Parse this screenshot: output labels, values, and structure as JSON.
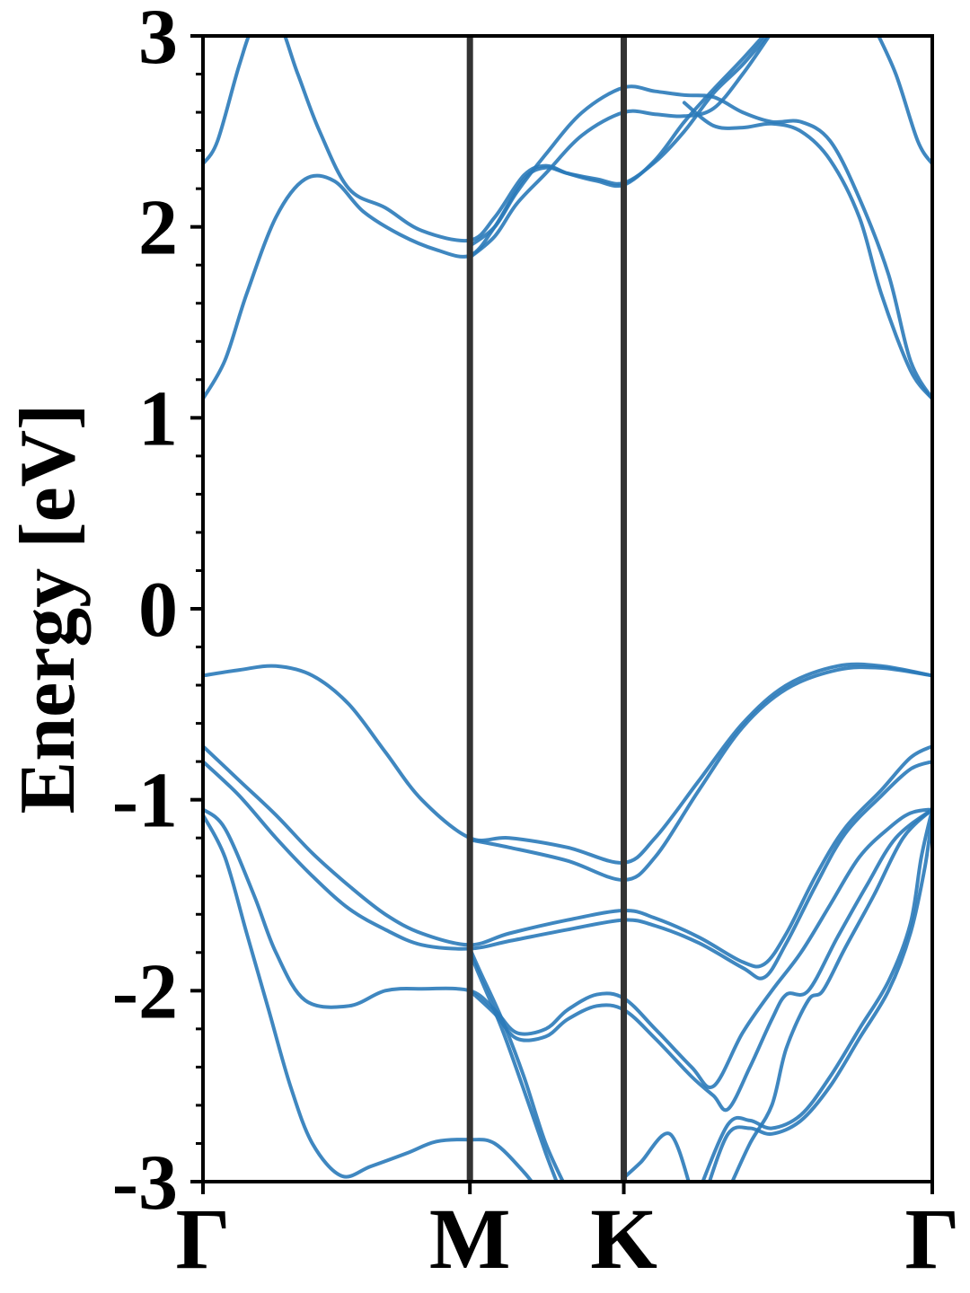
{
  "chart_data": {
    "type": "line",
    "ylabel": "Energy [eV]",
    "xlabel": "",
    "ylim": [
      -3,
      3
    ],
    "xlim": [
      0,
      1
    ],
    "y_major_ticks": [
      3,
      2,
      1,
      0,
      -1,
      -2,
      -3
    ],
    "y_tick_labels": [
      "3",
      "2",
      "1",
      "0",
      "-1",
      "-2",
      "-3"
    ],
    "y_minor_step": 0.2,
    "high_symmetry_points": [
      {
        "label": "Γ",
        "x": 0.0
      },
      {
        "label": "M",
        "x": 0.366
      },
      {
        "label": "K",
        "x": 0.577
      },
      {
        "label": "Γ",
        "x": 1.0
      }
    ],
    "vertical_lines_at": [
      0.366,
      0.577
    ],
    "grid": false,
    "line_color": "#2a7ab9",
    "vline_color": "#333333",
    "series": [
      {
        "values": [
          [
            0.0,
            2.33
          ],
          [
            0.02,
            2.45
          ],
          [
            0.05,
            2.85
          ],
          [
            0.07,
            3.05
          ],
          [
            0.1,
            3.1
          ],
          [
            0.13,
            2.8
          ],
          [
            0.16,
            2.5
          ],
          [
            0.2,
            2.2
          ],
          [
            0.25,
            2.1
          ],
          [
            0.3,
            1.98
          ],
          [
            0.366,
            1.93
          ],
          [
            0.4,
            2.05
          ],
          [
            0.44,
            2.27
          ],
          [
            0.47,
            2.32
          ],
          [
            0.5,
            2.28
          ],
          [
            0.54,
            2.24
          ],
          [
            0.577,
            2.22
          ],
          [
            0.62,
            2.35
          ],
          [
            0.66,
            2.55
          ],
          [
            0.7,
            2.72
          ],
          [
            0.74,
            2.88
          ],
          [
            0.78,
            3.05
          ]
        ]
      },
      {
        "values": [
          [
            0.0,
            1.1
          ],
          [
            0.03,
            1.3
          ],
          [
            0.06,
            1.65
          ],
          [
            0.1,
            2.05
          ],
          [
            0.14,
            2.25
          ],
          [
            0.18,
            2.24
          ],
          [
            0.22,
            2.08
          ],
          [
            0.27,
            1.96
          ],
          [
            0.32,
            1.88
          ],
          [
            0.366,
            1.85
          ],
          [
            0.4,
            2.0
          ],
          [
            0.44,
            2.25
          ],
          [
            0.47,
            2.31
          ],
          [
            0.5,
            2.28
          ],
          [
            0.54,
            2.25
          ],
          [
            0.577,
            2.23
          ],
          [
            0.62,
            2.34
          ],
          [
            0.66,
            2.5
          ],
          [
            0.7,
            2.7
          ],
          [
            0.74,
            2.85
          ],
          [
            0.78,
            3.03
          ]
        ]
      },
      {
        "values": [
          [
            0.366,
            1.84
          ],
          [
            0.4,
            1.95
          ],
          [
            0.43,
            2.12
          ],
          [
            0.47,
            2.28
          ],
          [
            0.52,
            2.48
          ],
          [
            0.577,
            2.6
          ],
          [
            0.62,
            2.59
          ],
          [
            0.66,
            2.58
          ],
          [
            0.7,
            2.62
          ],
          [
            0.74,
            2.8
          ],
          [
            0.78,
            3.02
          ]
        ]
      },
      {
        "values": [
          [
            0.366,
            1.9
          ],
          [
            0.4,
            2.0
          ],
          [
            0.43,
            2.18
          ],
          [
            0.47,
            2.38
          ],
          [
            0.52,
            2.6
          ],
          [
            0.577,
            2.73
          ],
          [
            0.62,
            2.71
          ],
          [
            0.66,
            2.69
          ],
          [
            0.7,
            2.68
          ],
          [
            0.74,
            2.6
          ],
          [
            0.78,
            2.55
          ],
          [
            0.82,
            2.55
          ],
          [
            0.86,
            2.45
          ],
          [
            0.9,
            2.15
          ],
          [
            0.94,
            1.75
          ],
          [
            0.97,
            1.3
          ],
          [
            1.0,
            1.1
          ]
        ]
      },
      {
        "values": [
          [
            0.66,
            2.65
          ],
          [
            0.7,
            2.53
          ],
          [
            0.74,
            2.52
          ],
          [
            0.78,
            2.54
          ],
          [
            0.82,
            2.5
          ],
          [
            0.86,
            2.35
          ],
          [
            0.9,
            2.05
          ],
          [
            0.93,
            1.65
          ],
          [
            0.97,
            1.25
          ],
          [
            1.0,
            1.1
          ]
        ]
      },
      {
        "values": [
          [
            0.92,
            3.05
          ],
          [
            0.95,
            2.8
          ],
          [
            0.98,
            2.45
          ],
          [
            1.0,
            2.33
          ]
        ]
      },
      {
        "values": [
          [
            0.0,
            -0.35
          ],
          [
            0.05,
            -0.32
          ],
          [
            0.1,
            -0.3
          ],
          [
            0.15,
            -0.35
          ],
          [
            0.2,
            -0.5
          ],
          [
            0.25,
            -0.75
          ],
          [
            0.3,
            -1.0
          ],
          [
            0.366,
            -1.2
          ],
          [
            0.42,
            -1.2
          ],
          [
            0.5,
            -1.25
          ],
          [
            0.577,
            -1.33
          ],
          [
            0.62,
            -1.2
          ],
          [
            0.68,
            -0.9
          ],
          [
            0.74,
            -0.6
          ],
          [
            0.8,
            -0.4
          ],
          [
            0.87,
            -0.3
          ],
          [
            0.93,
            -0.3
          ],
          [
            1.0,
            -0.35
          ]
        ]
      },
      {
        "values": [
          [
            0.366,
            -1.21
          ],
          [
            0.42,
            -1.25
          ],
          [
            0.5,
            -1.32
          ],
          [
            0.577,
            -1.42
          ],
          [
            0.62,
            -1.3
          ],
          [
            0.68,
            -0.95
          ],
          [
            0.74,
            -0.62
          ],
          [
            0.8,
            -0.42
          ],
          [
            0.87,
            -0.32
          ],
          [
            0.93,
            -0.31
          ],
          [
            1.0,
            -0.35
          ]
        ]
      },
      {
        "values": [
          [
            0.0,
            -0.72
          ],
          [
            0.05,
            -0.9
          ],
          [
            0.1,
            -1.08
          ],
          [
            0.15,
            -1.28
          ],
          [
            0.2,
            -1.45
          ],
          [
            0.25,
            -1.6
          ],
          [
            0.3,
            -1.7
          ],
          [
            0.366,
            -1.76
          ],
          [
            0.42,
            -1.7
          ],
          [
            0.5,
            -1.63
          ],
          [
            0.577,
            -1.58
          ],
          [
            0.62,
            -1.62
          ],
          [
            0.68,
            -1.72
          ],
          [
            0.74,
            -1.85
          ],
          [
            0.77,
            -1.86
          ],
          [
            0.8,
            -1.7
          ],
          [
            0.84,
            -1.4
          ],
          [
            0.88,
            -1.15
          ],
          [
            0.93,
            -0.95
          ],
          [
            0.97,
            -0.78
          ],
          [
            1.0,
            -0.72
          ]
        ]
      },
      {
        "values": [
          [
            0.0,
            -0.8
          ],
          [
            0.05,
            -0.98
          ],
          [
            0.1,
            -1.2
          ],
          [
            0.15,
            -1.4
          ],
          [
            0.2,
            -1.57
          ],
          [
            0.25,
            -1.68
          ],
          [
            0.3,
            -1.76
          ],
          [
            0.366,
            -1.78
          ],
          [
            0.42,
            -1.74
          ],
          [
            0.5,
            -1.68
          ],
          [
            0.577,
            -1.63
          ],
          [
            0.62,
            -1.66
          ],
          [
            0.68,
            -1.75
          ],
          [
            0.74,
            -1.88
          ],
          [
            0.77,
            -1.93
          ],
          [
            0.8,
            -1.75
          ],
          [
            0.84,
            -1.45
          ],
          [
            0.88,
            -1.18
          ],
          [
            0.93,
            -0.98
          ],
          [
            0.97,
            -0.84
          ],
          [
            1.0,
            -0.8
          ]
        ]
      },
      {
        "values": [
          [
            0.0,
            -1.05
          ],
          [
            0.03,
            -1.15
          ],
          [
            0.07,
            -1.5
          ],
          [
            0.1,
            -1.8
          ],
          [
            0.14,
            -2.05
          ],
          [
            0.2,
            -2.08
          ],
          [
            0.25,
            -2.0
          ],
          [
            0.3,
            -1.99
          ],
          [
            0.366,
            -2.0
          ],
          [
            0.4,
            -2.1
          ],
          [
            0.43,
            -2.22
          ],
          [
            0.47,
            -2.2
          ],
          [
            0.5,
            -2.1
          ],
          [
            0.54,
            -2.02
          ],
          [
            0.577,
            -2.04
          ],
          [
            0.62,
            -2.2
          ],
          [
            0.67,
            -2.4
          ],
          [
            0.7,
            -2.5
          ],
          [
            0.74,
            -2.22
          ],
          [
            0.78,
            -2.0
          ],
          [
            0.82,
            -1.8
          ],
          [
            0.86,
            -1.55
          ],
          [
            0.9,
            -1.3
          ],
          [
            0.94,
            -1.15
          ],
          [
            0.97,
            -1.07
          ],
          [
            1.0,
            -1.05
          ]
        ]
      },
      {
        "values": [
          [
            0.366,
            -2.0
          ],
          [
            0.4,
            -2.12
          ],
          [
            0.43,
            -2.25
          ],
          [
            0.47,
            -2.24
          ],
          [
            0.5,
            -2.15
          ],
          [
            0.54,
            -2.08
          ],
          [
            0.577,
            -2.1
          ],
          [
            0.62,
            -2.25
          ],
          [
            0.67,
            -2.45
          ],
          [
            0.7,
            -2.55
          ],
          [
            0.72,
            -2.62
          ],
          [
            0.75,
            -2.4
          ],
          [
            0.78,
            -2.15
          ],
          [
            0.8,
            -2.02
          ],
          [
            0.83,
            -2.0
          ],
          [
            0.87,
            -1.72
          ],
          [
            0.91,
            -1.45
          ],
          [
            0.95,
            -1.2
          ],
          [
            1.0,
            -1.05
          ]
        ]
      },
      {
        "values": [
          [
            0.0,
            -1.08
          ],
          [
            0.03,
            -1.3
          ],
          [
            0.06,
            -1.7
          ],
          [
            0.09,
            -2.1
          ],
          [
            0.12,
            -2.5
          ],
          [
            0.15,
            -2.8
          ],
          [
            0.19,
            -2.97
          ],
          [
            0.23,
            -2.92
          ],
          [
            0.28,
            -2.85
          ],
          [
            0.32,
            -2.79
          ],
          [
            0.366,
            -2.78
          ],
          [
            0.4,
            -2.8
          ],
          [
            0.44,
            -2.95
          ],
          [
            0.46,
            -3.05
          ]
        ]
      },
      {
        "values": [
          [
            0.366,
            -1.78
          ],
          [
            0.38,
            -1.9
          ],
          [
            0.41,
            -2.15
          ],
          [
            0.44,
            -2.45
          ],
          [
            0.47,
            -2.8
          ],
          [
            0.5,
            -3.05
          ]
        ]
      },
      {
        "values": [
          [
            0.366,
            -1.8
          ],
          [
            0.38,
            -1.93
          ],
          [
            0.41,
            -2.2
          ],
          [
            0.44,
            -2.52
          ],
          [
            0.47,
            -2.85
          ],
          [
            0.49,
            -3.05
          ]
        ]
      },
      {
        "values": [
          [
            0.577,
            -2.98
          ],
          [
            0.6,
            -2.9
          ],
          [
            0.64,
            -2.75
          ],
          [
            0.67,
            -3.05
          ]
        ]
      },
      {
        "values": [
          [
            0.68,
            -3.05
          ],
          [
            0.72,
            -2.7
          ],
          [
            0.75,
            -2.68
          ],
          [
            0.78,
            -2.72
          ],
          [
            0.82,
            -2.65
          ],
          [
            0.86,
            -2.45
          ],
          [
            0.9,
            -2.2
          ],
          [
            0.94,
            -1.95
          ],
          [
            0.97,
            -1.65
          ],
          [
            0.985,
            -1.3
          ],
          [
            1.0,
            -1.05
          ]
        ]
      },
      {
        "values": [
          [
            0.69,
            -3.05
          ],
          [
            0.72,
            -2.75
          ],
          [
            0.75,
            -2.72
          ],
          [
            0.78,
            -2.75
          ],
          [
            0.82,
            -2.68
          ],
          [
            0.86,
            -2.5
          ],
          [
            0.9,
            -2.25
          ],
          [
            0.94,
            -2.0
          ],
          [
            0.97,
            -1.7
          ],
          [
            0.99,
            -1.35
          ],
          [
            1.0,
            -1.08
          ]
        ]
      },
      {
        "values": [
          [
            0.72,
            -3.05
          ],
          [
            0.75,
            -2.8
          ],
          [
            0.78,
            -2.6
          ],
          [
            0.8,
            -2.3
          ],
          [
            0.83,
            -2.05
          ],
          [
            0.85,
            -2.0
          ],
          [
            0.88,
            -1.78
          ],
          [
            0.92,
            -1.5
          ],
          [
            0.96,
            -1.2
          ],
          [
            1.0,
            -1.05
          ]
        ]
      }
    ]
  }
}
